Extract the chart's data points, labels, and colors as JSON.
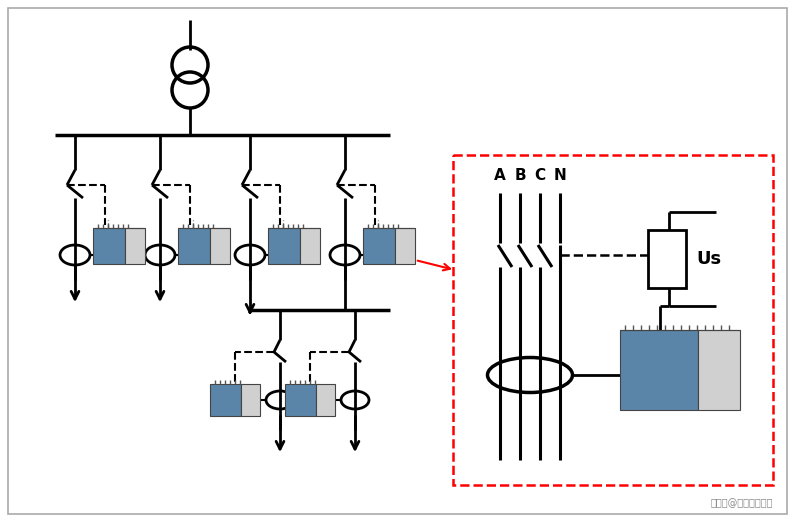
{
  "bg_color": "#ffffff",
  "line_color": "#000000",
  "red_color": "#ff0000",
  "fig_width": 7.95,
  "fig_height": 5.22,
  "watermark": "搜狐号@安科瑞张田田",
  "labels_abcn": [
    "A",
    "B",
    "C",
    "N"
  ],
  "label_us": "Us"
}
